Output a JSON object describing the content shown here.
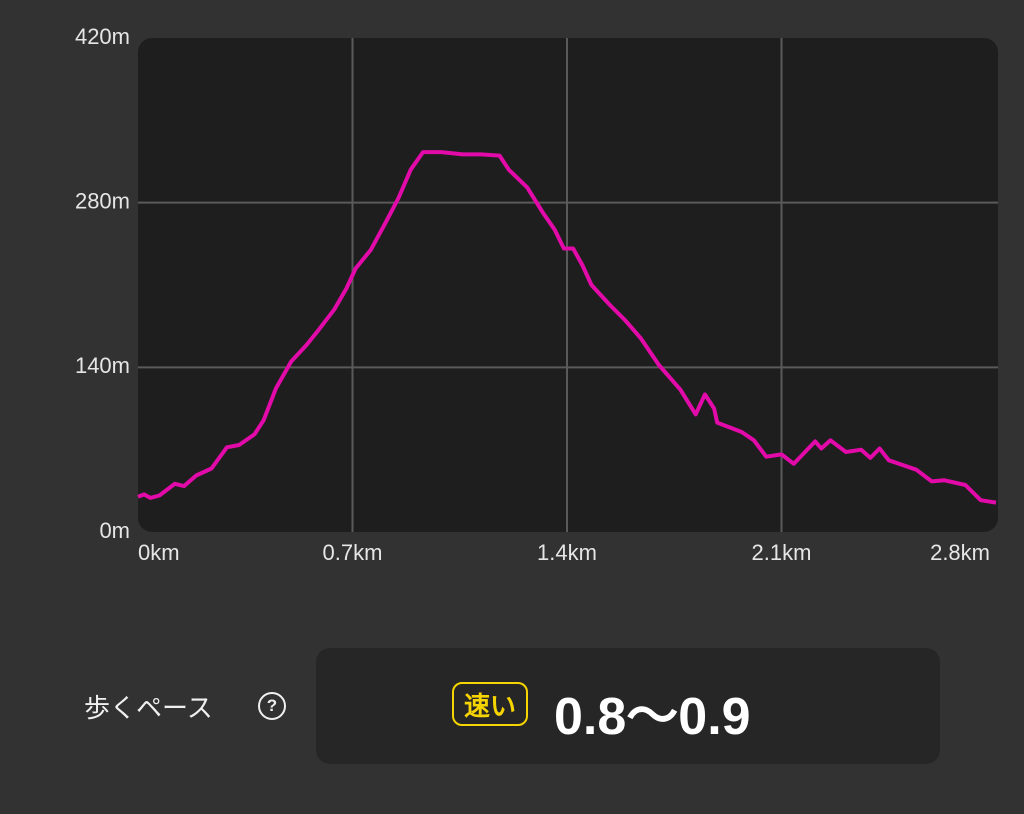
{
  "chart_data": {
    "type": "line",
    "x": [
      0,
      0.02,
      0.04,
      0.07,
      0.12,
      0.15,
      0.19,
      0.24,
      0.29,
      0.33,
      0.38,
      0.41,
      0.45,
      0.5,
      0.55,
      0.59,
      0.64,
      0.68,
      0.71,
      0.76,
      0.81,
      0.85,
      0.89,
      0.93,
      0.99,
      1.06,
      1.12,
      1.18,
      1.21,
      1.27,
      1.32,
      1.36,
      1.39,
      1.42,
      1.45,
      1.48,
      1.54,
      1.59,
      1.64,
      1.7,
      1.77,
      1.82,
      1.85,
      1.88,
      1.89,
      1.97,
      2.01,
      2.05,
      2.1,
      2.14,
      2.21,
      2.23,
      2.26,
      2.31,
      2.36,
      2.39,
      2.42,
      2.45,
      2.54,
      2.59,
      2.63,
      2.7,
      2.75,
      2.8
    ],
    "series": [
      {
        "color": "#e20aa8",
        "values": [
          30,
          32,
          29,
          31,
          41,
          39,
          48,
          54,
          72,
          74,
          83,
          95,
          122,
          145,
          159,
          172,
          189,
          207,
          224,
          240,
          264,
          284,
          308,
          323,
          323,
          321,
          321,
          320,
          308,
          293,
          272,
          257,
          241,
          241,
          227,
          210,
          193,
          180,
          165,
          142,
          121,
          100,
          117,
          105,
          93,
          85,
          78,
          64,
          66,
          58,
          77,
          71,
          78,
          68,
          70,
          63,
          71,
          61,
          53,
          43,
          44,
          40,
          27,
          25
        ]
      }
    ],
    "xlim": [
      0,
      2.8
    ],
    "xticks": [
      {
        "value": 0,
        "label": "0km"
      },
      {
        "value": 0.7,
        "label": "0.7km"
      },
      {
        "value": 1.4,
        "label": "1.4km"
      },
      {
        "value": 2.1,
        "label": "2.1km"
      },
      {
        "value": 2.8,
        "label": "2.8km"
      }
    ],
    "ylim": [
      0,
      420
    ],
    "yticks": [
      {
        "value": 0,
        "label": "0m"
      },
      {
        "value": 140,
        "label": "140m"
      },
      {
        "value": 280,
        "label": "280m"
      },
      {
        "value": 420,
        "label": "420m"
      }
    ],
    "grid": true
  },
  "pace": {
    "label": "歩くペース",
    "help_icon": "?",
    "badge": "速い",
    "value": "0.8～0.9"
  }
}
